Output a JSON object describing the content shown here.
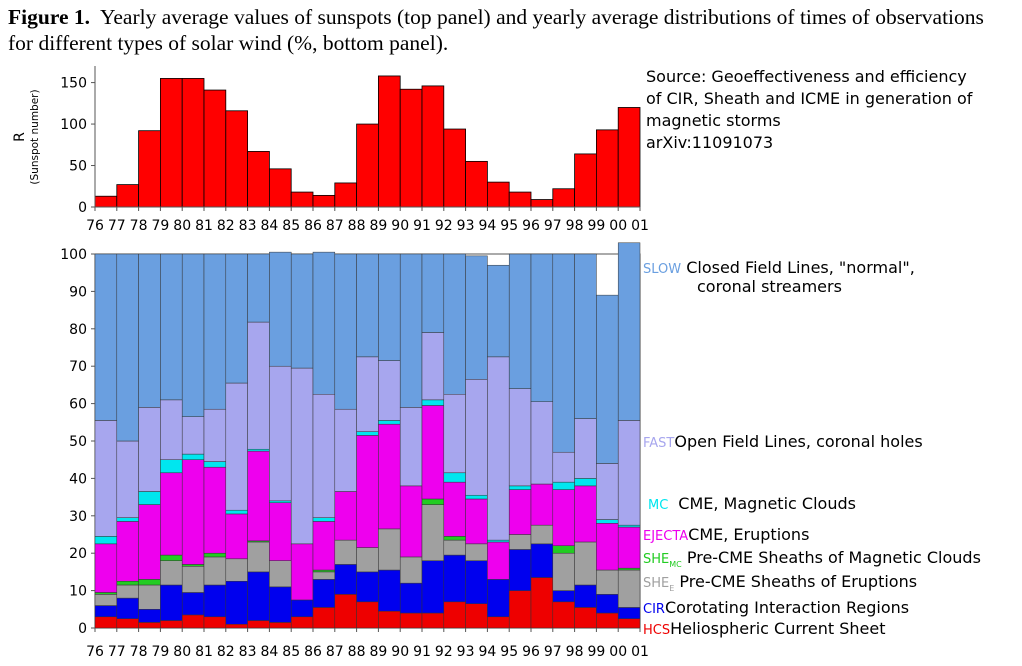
{
  "caption": {
    "label": "Figure 1.",
    "text": "Yearly average values of sunspots (top panel) and yearly average distributions of times of observations for different types of solar wind (%, bottom panel)."
  },
  "source_note": {
    "lines": [
      "Source: Geoeffectiveness and efficiency",
      "of CIR, Sheath and ICME in generation of",
      "magnetic storms",
      "arXiv:11091073"
    ]
  },
  "legend": [
    {
      "code": "SLOW",
      "sub": "",
      "desc": "Closed Field Lines, \"normal\",",
      "desc2": "coronal streamers",
      "color": "#6a9fe0"
    },
    {
      "code": "FAST",
      "sub": "",
      "desc": "Open Field Lines, coronal holes",
      "desc2": "",
      "color": "#a7a6ee"
    },
    {
      "code": "MC",
      "sub": "",
      "desc": "CME, Magnetic Clouds",
      "desc2": "",
      "color": "#00e6ef"
    },
    {
      "code": "EJECTA",
      "sub": "",
      "desc": "CME, Eruptions",
      "desc2": "",
      "color": "#ee00ee"
    },
    {
      "code": "SHE",
      "sub": "MC",
      "desc": "Pre-CME Sheaths of Magnetic Clouds",
      "desc2": "",
      "color": "#22cc22"
    },
    {
      "code": "SHE",
      "sub": "E",
      "desc": "Pre-CME Sheaths of Eruptions",
      "desc2": "",
      "color": "#a0a0a0"
    },
    {
      "code": "CIR",
      "sub": "",
      "desc": "Corotating Interaction Regions",
      "desc2": "",
      "color": "#0000ee"
    },
    {
      "code": "HCS",
      "sub": "",
      "desc": "Heliospheric Current Sheet",
      "desc2": "",
      "color": "#ee0000"
    }
  ],
  "chart_data": [
    {
      "type": "bar",
      "panel": "top",
      "ylabel": "R",
      "ylabel2": "(Sunspot number)",
      "ylim": [
        0,
        170
      ],
      "yticks": [
        0,
        50,
        100,
        150
      ],
      "bar_color": "#ff0000",
      "categories": [
        "76",
        "77",
        "78",
        "79",
        "80",
        "81",
        "82",
        "83",
        "84",
        "85",
        "86",
        "87",
        "88",
        "89",
        "90",
        "91",
        "92",
        "93",
        "94",
        "95",
        "96",
        "97",
        "98",
        "99",
        "00",
        "01"
      ],
      "values": [
        13,
        27,
        92,
        155,
        155,
        141,
        116,
        67,
        46,
        18,
        14,
        29,
        100,
        158,
        142,
        146,
        94,
        55,
        30,
        18,
        9,
        22,
        64,
        93,
        120,
        0
      ]
    },
    {
      "type": "bar",
      "stacked": true,
      "panel": "bottom",
      "ylabel": "",
      "ylim": [
        0,
        100
      ],
      "yticks": [
        0,
        10,
        20,
        30,
        40,
        50,
        60,
        70,
        80,
        90,
        100
      ],
      "categories": [
        "76",
        "77",
        "78",
        "79",
        "80",
        "81",
        "82",
        "83",
        "84",
        "85",
        "86",
        "87",
        "88",
        "89",
        "90",
        "91",
        "92",
        "93",
        "94",
        "95",
        "96",
        "97",
        "98",
        "99",
        "00",
        "01"
      ],
      "series": [
        {
          "name": "HCS",
          "color": "#ee0000",
          "values": [
            3,
            2.5,
            1.5,
            2,
            3.5,
            3,
            1,
            2,
            1.5,
            3,
            5.5,
            9,
            7,
            4.5,
            4,
            4,
            7,
            6.5,
            3,
            10,
            13.5,
            7,
            5.5,
            4,
            2.5,
            0
          ]
        },
        {
          "name": "CIR",
          "color": "#0000ee",
          "values": [
            3,
            5.5,
            3.5,
            9.5,
            6,
            8.5,
            11.5,
            13,
            9.5,
            4.5,
            7.5,
            8,
            8,
            11,
            8,
            14,
            12.5,
            11.5,
            10,
            11,
            9,
            3,
            6,
            5,
            3,
            0
          ]
        },
        {
          "name": "SHE_E",
          "color": "#a0a0a0",
          "values": [
            3,
            3.5,
            6.5,
            6.5,
            7,
            7.5,
            6,
            8,
            7,
            0,
            2,
            6.5,
            6.5,
            11,
            7,
            15,
            4,
            4.5,
            0,
            4,
            5,
            10,
            11.5,
            6.5,
            10,
            0
          ]
        },
        {
          "name": "SHE_MC",
          "color": "#22cc22",
          "values": [
            0.5,
            1,
            1.5,
            1.5,
            0.5,
            1,
            0,
            0.3,
            0,
            0,
            0.5,
            0,
            0,
            0,
            0,
            1.5,
            1,
            0,
            0,
            0,
            0,
            2,
            0,
            0,
            0.5,
            0
          ]
        },
        {
          "name": "EJECTA",
          "color": "#ee00ee",
          "values": [
            13,
            16,
            20,
            22,
            28,
            23,
            12,
            24,
            15.5,
            15,
            13,
            13,
            30,
            28,
            19,
            25,
            14.5,
            12,
            10,
            12,
            11,
            15,
            15,
            12.5,
            11,
            0
          ]
        },
        {
          "name": "MC",
          "color": "#00e6ef",
          "values": [
            2,
            1,
            3.5,
            3.5,
            1.5,
            1.5,
            1,
            0.5,
            0.5,
            0,
            1,
            0,
            1,
            1,
            0,
            1.5,
            2.5,
            1,
            0.5,
            1,
            0,
            2,
            2,
            1,
            0.5,
            0
          ]
        },
        {
          "name": "FAST",
          "color": "#a7a6ee",
          "values": [
            31,
            20.5,
            22.5,
            16,
            10,
            14,
            34,
            34,
            36,
            47,
            33,
            22,
            20,
            16,
            21,
            18,
            21,
            31,
            49,
            26,
            22,
            8,
            16,
            15,
            28,
            0
          ]
        },
        {
          "name": "SLOW",
          "color": "#6a9fe0",
          "values": [
            44.5,
            50,
            41,
            39,
            43.5,
            41.5,
            34.5,
            18.2,
            30.5,
            30.5,
            38,
            41.5,
            27.5,
            28.5,
            41,
            21,
            37.5,
            33,
            24.5,
            36,
            39.5,
            53,
            44,
            45,
            47.5,
            0
          ]
        }
      ]
    }
  ]
}
